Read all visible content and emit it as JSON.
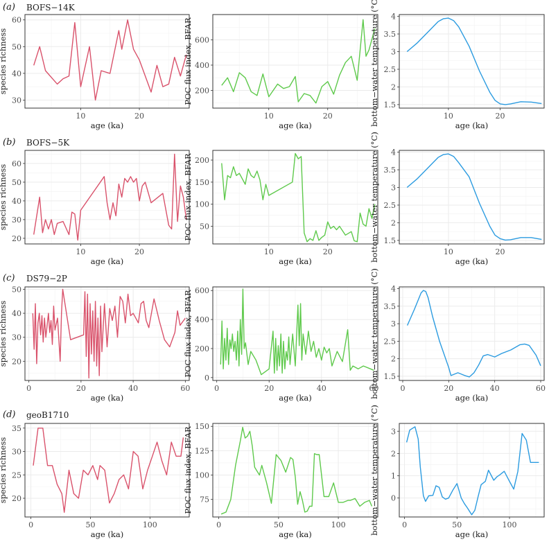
{
  "figure": {
    "xlabel": "age (ka)",
    "row_labels": [
      "(a)",
      "(b)",
      "(c)",
      "(d)"
    ],
    "core_names": [
      "BOFS−14K",
      "BOFS−5K",
      "DS79−2P",
      "geoB1710"
    ],
    "col_ylabels": [
      "species richness",
      "POC flux index, BFAR",
      "bottom−water temperature (°C)"
    ]
  },
  "colors": {
    "species": "#d9526b",
    "poc": "#5ec94b",
    "temp": "#2b9be0",
    "grid": "#ebebeb",
    "frame": "#333333"
  },
  "chart_data": [
    {
      "type": "line",
      "core": "BOFS−14K",
      "panel": "species richness",
      "color": "species",
      "xlabel": "age (ka)",
      "ylabel": "species richness",
      "xlim": [
        0.5,
        28.5
      ],
      "ylim": [
        27,
        62
      ],
      "xticks": [
        10,
        20
      ],
      "yticks": [
        30,
        40,
        50,
        60
      ],
      "x": [
        2,
        3,
        4,
        6,
        7,
        8,
        9,
        10,
        11.5,
        12.5,
        13.5,
        15,
        16.5,
        17,
        18,
        19,
        20,
        22,
        23,
        24,
        25,
        26,
        27,
        28
      ],
      "y": [
        43,
        50,
        41,
        36,
        38,
        39,
        59,
        35,
        50,
        30,
        41,
        40,
        56,
        49,
        60,
        49,
        45,
        33,
        43,
        35,
        36,
        46,
        39,
        47
      ]
    },
    {
      "type": "line",
      "core": "BOFS−14K",
      "panel": "POC flux index, BFAR",
      "color": "poc",
      "xlabel": "age (ka)",
      "ylabel": "POC flux index, BFAR",
      "xlim": [
        0.5,
        28.5
      ],
      "ylim": [
        60,
        800
      ],
      "xticks": [
        10,
        20
      ],
      "yticks": [
        200,
        400,
        600
      ],
      "x": [
        2,
        3,
        4,
        5,
        6,
        7,
        8,
        9,
        10,
        11.5,
        12.5,
        13.5,
        14.5,
        15,
        16,
        17,
        18,
        19,
        20,
        21,
        22,
        23,
        24,
        25,
        26,
        26.5,
        27,
        28
      ],
      "y": [
        240,
        300,
        190,
        340,
        300,
        190,
        160,
        330,
        150,
        250,
        215,
        230,
        310,
        110,
        175,
        160,
        100,
        230,
        270,
        170,
        320,
        420,
        470,
        280,
        760,
        470,
        520,
        690
      ]
    },
    {
      "type": "line",
      "core": "BOFS−14K",
      "panel": "bottom-water temperature",
      "color": "temp",
      "xlabel": "age (ka)",
      "ylabel": "bottom−water temperature (°C)",
      "xlim": [
        0.5,
        28.5
      ],
      "ylim": [
        1.4,
        4.05
      ],
      "xticks": [
        10,
        20
      ],
      "yticks": [
        1.5,
        2.0,
        2.5,
        3.0,
        3.5,
        4.0
      ],
      "x": [
        2,
        4,
        6,
        8,
        9,
        10,
        11,
        12,
        14,
        16,
        18,
        19,
        20,
        21,
        22,
        24,
        26,
        28
      ],
      "y": [
        3.0,
        3.25,
        3.55,
        3.85,
        3.93,
        3.95,
        3.88,
        3.7,
        3.15,
        2.45,
        1.85,
        1.62,
        1.52,
        1.5,
        1.52,
        1.58,
        1.57,
        1.53
      ]
    },
    {
      "type": "line",
      "core": "BOFS−5K",
      "panel": "species richness",
      "color": "species",
      "xlabel": "age (ka)",
      "ylabel": "species richness",
      "xlim": [
        0.5,
        28.5
      ],
      "ylim": [
        17,
        67
      ],
      "xticks": [
        10,
        20
      ],
      "yticks": [
        20,
        30,
        40,
        50,
        60
      ],
      "x": [
        2,
        3,
        3.5,
        4,
        4.5,
        5,
        5.5,
        6,
        7,
        8,
        8.5,
        9,
        9.5,
        10,
        14,
        14.5,
        15,
        15.5,
        16,
        16.5,
        17,
        17.5,
        18,
        18.5,
        19,
        19.5,
        20,
        20.5,
        21,
        22,
        24,
        25,
        25.5,
        26,
        26.5,
        27,
        27.5,
        28
      ],
      "y": [
        22,
        42,
        23,
        30,
        25,
        30,
        22,
        28,
        29,
        22,
        34,
        33,
        19,
        35,
        53,
        39,
        30,
        39,
        32,
        49,
        42,
        52,
        50,
        53,
        50,
        52,
        40,
        48,
        50,
        39,
        44,
        27,
        25,
        65,
        29,
        48,
        42,
        30
      ]
    },
    {
      "type": "line",
      "core": "BOFS−5K",
      "panel": "POC flux index, BFAR",
      "color": "poc",
      "xlabel": "age (ka)",
      "ylabel": "POC flux index, BFAR",
      "xlim": [
        0.5,
        28.5
      ],
      "ylim": [
        10,
        222
      ],
      "xticks": [
        10,
        20
      ],
      "yticks": [
        50,
        100,
        150,
        200
      ],
      "x": [
        2,
        2.5,
        3,
        3.5,
        4,
        4.5,
        5,
        6,
        6.5,
        7,
        7.5,
        8,
        8.5,
        9,
        9.5,
        10,
        14,
        14.5,
        15,
        15.5,
        16,
        16.5,
        17,
        17.5,
        18,
        18.5,
        19,
        19.5,
        20,
        20.5,
        21,
        21.5,
        22,
        23,
        24,
        24.5,
        25,
        25.5,
        26,
        26.5,
        27,
        27.5,
        28
      ],
      "y": [
        193,
        110,
        165,
        160,
        185,
        165,
        170,
        145,
        180,
        165,
        160,
        175,
        155,
        110,
        145,
        120,
        150,
        215,
        203,
        208,
        35,
        15,
        22,
        18,
        40,
        18,
        25,
        30,
        60,
        45,
        50,
        42,
        50,
        30,
        38,
        17,
        15,
        80,
        55,
        50,
        90,
        68,
        100
      ]
    },
    {
      "type": "line",
      "core": "BOFS−5K",
      "panel": "bottom-water temperature",
      "color": "temp",
      "xlabel": "age (ka)",
      "ylabel": "bottom−water temperature (°C)",
      "xlim": [
        0.5,
        28.5
      ],
      "ylim": [
        1.4,
        4.05
      ],
      "xticks": [
        10,
        20
      ],
      "yticks": [
        1.5,
        2.0,
        2.5,
        3.0,
        3.5,
        4.0
      ],
      "x": [
        2,
        4,
        6,
        8,
        9,
        10,
        11,
        12,
        14,
        16,
        18,
        19,
        20,
        21,
        22,
        24,
        26,
        28
      ],
      "y": [
        3.0,
        3.25,
        3.55,
        3.85,
        3.93,
        3.95,
        3.88,
        3.7,
        3.3,
        2.55,
        1.9,
        1.65,
        1.55,
        1.51,
        1.52,
        1.58,
        1.58,
        1.53
      ]
    },
    {
      "type": "line",
      "core": "DS79−2P",
      "panel": "species richness",
      "color": "species",
      "xlabel": "age (ka)",
      "ylabel": "species richness",
      "xlim": [
        -1.5,
        61.5
      ],
      "ylim": [
        12,
        51
      ],
      "xticks": [
        0,
        20,
        40,
        60
      ],
      "yticks": [
        20,
        30,
        40,
        50
      ],
      "x": [
        1.5,
        2,
        2.5,
        3,
        3.5,
        4,
        4.5,
        5,
        5.5,
        6,
        6.5,
        7,
        7.5,
        8,
        8.5,
        9,
        9.5,
        10,
        11,
        12,
        12.5,
        13,
        16,
        21,
        21.5,
        22,
        22.5,
        23,
        23.5,
        24,
        24.5,
        25,
        25.5,
        26,
        26.5,
        27,
        27.5,
        28,
        29,
        30,
        31,
        32,
        33,
        34,
        35,
        36,
        37,
        38,
        39,
        40,
        42,
        43,
        44,
        45,
        46,
        48,
        50,
        52,
        54,
        56,
        57,
        58,
        60
      ],
      "y": [
        40,
        25,
        44,
        19,
        36,
        40,
        31,
        39,
        28,
        38,
        30,
        35,
        40,
        32,
        37,
        27,
        43,
        33,
        38,
        20,
        40,
        50,
        29,
        31,
        49,
        22,
        48,
        13,
        44,
        23,
        41,
        20,
        45,
        18,
        38,
        14,
        43,
        24,
        44,
        26,
        42,
        37,
        43,
        30,
        47,
        45,
        36,
        48,
        39,
        40,
        36,
        44,
        45,
        37,
        34,
        46,
        37,
        29,
        26,
        32,
        41,
        35,
        38
      ]
    },
    {
      "type": "line",
      "core": "DS79−2P",
      "panel": "POC flux index, BFAR",
      "color": "poc",
      "xlabel": "age (ka)",
      "ylabel": "POC flux index, BFAR",
      "xlim": [
        -1.5,
        61.5
      ],
      "ylim": [
        -20,
        625
      ],
      "xticks": [
        0,
        20,
        40,
        60
      ],
      "yticks": [
        0,
        200,
        400,
        600
      ],
      "x": [
        1.5,
        2,
        2.5,
        3,
        3.5,
        4,
        4.5,
        5,
        5.5,
        6,
        6.5,
        7,
        7.5,
        8,
        8.5,
        9,
        9.5,
        10,
        10.5,
        11,
        12,
        13,
        15,
        17,
        20,
        21.5,
        22,
        22.5,
        23,
        23.5,
        24,
        24.5,
        25,
        25.5,
        26,
        26.5,
        27,
        27.5,
        28,
        29,
        30,
        31,
        31.5,
        32,
        32.5,
        33,
        34,
        35,
        36,
        37,
        38,
        39,
        40,
        41,
        42,
        43,
        44,
        46,
        48,
        50,
        51,
        52,
        54,
        56,
        58,
        60
      ],
      "y": [
        90,
        390,
        60,
        270,
        120,
        340,
        90,
        260,
        200,
        300,
        180,
        250,
        120,
        320,
        80,
        400,
        160,
        610,
        200,
        240,
        90,
        180,
        120,
        20,
        60,
        320,
        30,
        270,
        50,
        220,
        80,
        300,
        30,
        250,
        60,
        180,
        120,
        280,
        90,
        300,
        80,
        500,
        220,
        510,
        120,
        300,
        160,
        320,
        180,
        250,
        140,
        200,
        120,
        210,
        170,
        200,
        80,
        180,
        110,
        330,
        50,
        80,
        60,
        80,
        65,
        50
      ]
    },
    {
      "type": "line",
      "core": "DS79−2P",
      "panel": "bottom-water temperature",
      "color": "temp",
      "xlabel": "age (ka)",
      "ylabel": "bottom−water temperature (°C)",
      "xlim": [
        -1.5,
        61.5
      ],
      "ylim": [
        1.38,
        4.05
      ],
      "xticks": [
        0,
        20,
        40,
        60
      ],
      "yticks": [
        1.5,
        2.0,
        2.5,
        3.0,
        3.5,
        4.0
      ],
      "x": [
        2,
        5,
        8,
        9,
        10,
        11,
        13,
        16,
        20,
        21,
        24,
        27,
        29,
        31,
        33,
        35,
        37,
        40,
        43,
        47,
        51,
        53,
        55,
        58,
        60
      ],
      "y": [
        2.95,
        3.4,
        3.88,
        3.95,
        3.92,
        3.75,
        3.2,
        2.5,
        1.75,
        1.52,
        1.6,
        1.52,
        1.48,
        1.6,
        1.82,
        2.08,
        2.12,
        2.05,
        2.15,
        2.25,
        2.4,
        2.42,
        2.38,
        2.1,
        1.8
      ]
    },
    {
      "type": "line",
      "core": "geoB1710",
      "panel": "species richness",
      "color": "species",
      "xlabel": "age (ka)",
      "ylabel": "species richness",
      "xlim": [
        -5,
        133
      ],
      "ylim": [
        16,
        36
      ],
      "xticks": [
        0,
        50,
        100
      ],
      "yticks": [
        20,
        25,
        30,
        35
      ],
      "x": [
        2,
        6,
        10,
        14,
        18,
        22,
        26,
        28,
        32,
        36,
        40,
        44,
        48,
        52,
        56,
        58,
        62,
        66,
        70,
        74,
        78,
        82,
        86,
        90,
        94,
        98,
        102,
        106,
        110,
        114,
        118,
        122,
        126,
        128
      ],
      "y": [
        27,
        35,
        35,
        27,
        27,
        23,
        21,
        17,
        26,
        21,
        20,
        26,
        25,
        27,
        24,
        27,
        26,
        19,
        21,
        24,
        25,
        22,
        30,
        29,
        22,
        26,
        29,
        32,
        28,
        25,
        32,
        29,
        29,
        33
      ]
    },
    {
      "type": "line",
      "core": "geoB1710",
      "panel": "POC flux index, BFAR",
      "color": "poc",
      "xlabel": "age (ka)",
      "ylabel": "POC flux index, BFAR",
      "xlim": [
        -5,
        133
      ],
      "ylim": [
        57,
        153
      ],
      "xticks": [
        0,
        50,
        100
      ],
      "yticks": [
        75,
        100,
        125,
        150
      ],
      "x": [
        2,
        6,
        10,
        14,
        18,
        20,
        22,
        24,
        26,
        28,
        30,
        34,
        36,
        40,
        44,
        48,
        52,
        56,
        60,
        62,
        64,
        66,
        68,
        70,
        72,
        74,
        76,
        78,
        80,
        82,
        84,
        88,
        92,
        96,
        100,
        104,
        108,
        110,
        114,
        118,
        122,
        126,
        128
      ],
      "y": [
        60,
        62,
        75,
        110,
        135,
        149,
        138,
        140,
        145,
        130,
        108,
        100,
        110,
        92,
        71,
        121,
        115,
        103,
        118,
        116,
        98,
        70,
        83,
        74,
        62,
        63,
        68,
        68,
        122,
        121,
        121,
        78,
        78,
        92,
        72,
        72,
        74,
        74,
        76,
        68,
        72,
        74,
        68
      ]
    },
    {
      "type": "line",
      "core": "geoB1710",
      "panel": "bottom-water temperature",
      "color": "temp",
      "xlabel": "age (ka)",
      "ylabel": "bottom−water temperature (°C)",
      "xlim": [
        -5,
        133
      ],
      "ylim": [
        -0.85,
        3.35
      ],
      "xticks": [
        0,
        50,
        100
      ],
      "yticks": [
        0,
        1,
        2,
        3
      ],
      "x": [
        2,
        5,
        10,
        13,
        15,
        18,
        20,
        23,
        27,
        30,
        33,
        36,
        39,
        42,
        46,
        50,
        54,
        57,
        60,
        64,
        67,
        70,
        73,
        77,
        80,
        85,
        88,
        91,
        95,
        100,
        104,
        108,
        112,
        116,
        120,
        124,
        126,
        128
      ],
      "y": [
        2.5,
        3.05,
        3.2,
        2.65,
        1.4,
        0.1,
        -0.15,
        0.1,
        0.12,
        0.55,
        0.48,
        0.05,
        -0.05,
        0.0,
        0.35,
        0.65,
        0.0,
        -0.25,
        -0.45,
        -0.75,
        -0.55,
        0.05,
        0.6,
        0.75,
        1.25,
        0.8,
        0.95,
        1.05,
        1.2,
        0.75,
        0.4,
        1.2,
        2.9,
        2.6,
        1.6,
        1.6,
        1.6,
        1.6
      ]
    }
  ]
}
